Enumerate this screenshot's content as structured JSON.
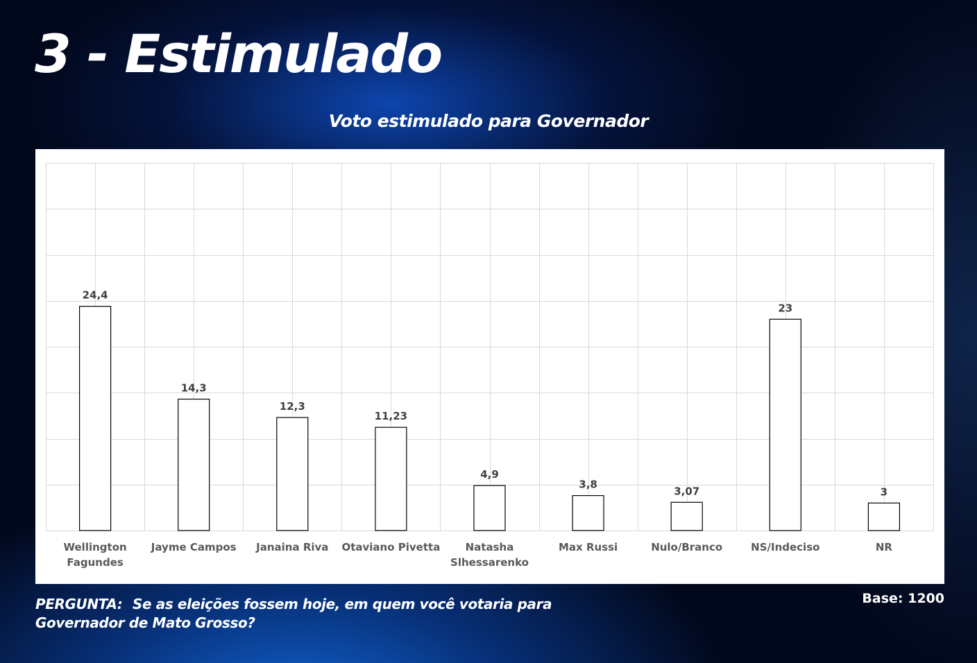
{
  "header": {
    "title": "3 - Estimulado"
  },
  "footer": {
    "question_label": "PERGUNTA:",
    "question_text": "Se as eleições fossem hoje, em quem você votaria para Governador de Mato Grosso?",
    "base": "Base: 1200"
  },
  "colors": {
    "bar_fill": "#ffffff",
    "bar_stroke": "#000000",
    "grid": "#d9d9d9",
    "panel_bg": "#ffffff"
  },
  "chart_data": {
    "type": "bar",
    "title": "Voto estimulado para Governador",
    "xlabel": "",
    "ylabel": "",
    "ylim": [
      0,
      40
    ],
    "grid": true,
    "legend": "none",
    "categories": [
      [
        "Wellington",
        "Fagundes"
      ],
      [
        "Jayme Campos"
      ],
      [
        "Janaina Riva"
      ],
      [
        "Otaviano Pivetta"
      ],
      [
        "Natasha",
        "Slhessarenko"
      ],
      [
        "Max Russi"
      ],
      [
        "Nulo/Branco"
      ],
      [
        "NS/Indeciso"
      ],
      [
        "NR"
      ]
    ],
    "values": [
      24.4,
      14.3,
      12.3,
      11.23,
      4.9,
      3.8,
      3.07,
      23,
      3
    ],
    "value_labels": [
      "24,4",
      "14,3",
      "12,3",
      "11,23",
      "4,9",
      "3,8",
      "3,07",
      "23",
      "3"
    ]
  }
}
